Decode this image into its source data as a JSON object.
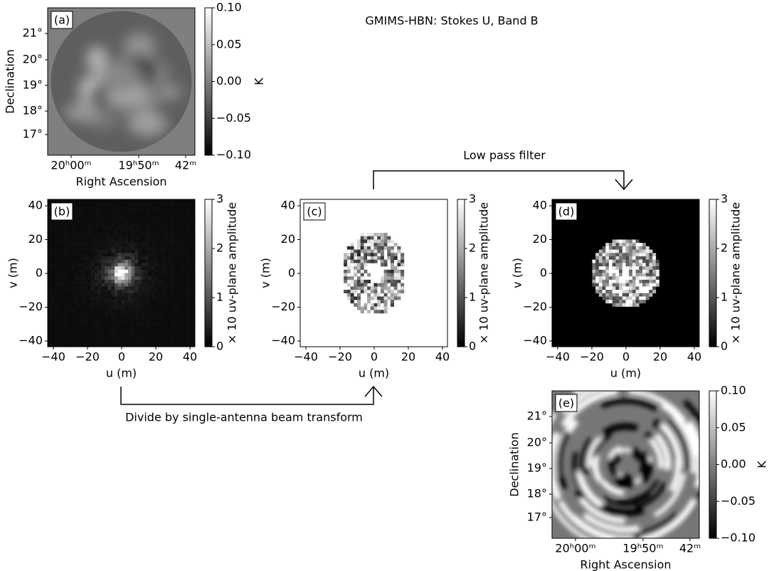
{
  "title": "GMIMS-HBN: Stokes U, Band B",
  "panels": [
    {
      "label": "(a)",
      "xlabel": "Right Ascension",
      "ylabel": "Declination",
      "xticks": [
        "20ʰ00ᵐ",
        "19ʰ50ᵐ",
        "42ᵐ"
      ],
      "yticks": [
        "21°",
        "20°",
        "19°",
        "18°",
        "17°"
      ],
      "colorbar": {
        "ticks": [
          "0.10",
          "0.05",
          "0.00",
          "−0.05",
          "−0.10"
        ],
        "label": "K"
      }
    },
    {
      "label": "(b)",
      "xlabel": "u (m)",
      "ylabel": "v (m)",
      "xticks": [
        "−40",
        "−20",
        "0",
        "20",
        "40"
      ],
      "yticks": [
        "40",
        "20",
        "0",
        "−20",
        "−40"
      ],
      "colorbar": {
        "ticks": [
          "3",
          "2",
          "1",
          "0"
        ],
        "label": "× 10 uv-plane amplitude"
      }
    },
    {
      "label": "(c)",
      "xlabel": "u (m)",
      "ylabel": "v (m)",
      "xticks": [
        "−40",
        "−20",
        "0",
        "20",
        "40"
      ],
      "yticks": [
        "40",
        "20",
        "0",
        "−20",
        "−40"
      ],
      "colorbar": {
        "ticks": [
          "3",
          "2",
          "1",
          "0"
        ],
        "label": "× 10 uv-plane amplitude"
      }
    },
    {
      "label": "(d)",
      "xlabel": "u (m)",
      "ylabel": "v (m)",
      "xticks": [
        "−40",
        "−20",
        "0",
        "20",
        "40"
      ],
      "yticks": [
        "40",
        "20",
        "0",
        "−20",
        "−40"
      ],
      "colorbar": {
        "ticks": [
          "3",
          "2",
          "1",
          "0"
        ],
        "label": "× 10 uv-plane amplitude"
      }
    },
    {
      "label": "(e)",
      "xlabel": "Right Ascension",
      "ylabel": "Declination",
      "xticks": [
        "20ʰ00ᵐ",
        "19ʰ50ᵐ",
        "42ᵐ"
      ],
      "yticks": [
        "21°",
        "20°",
        "19°",
        "18°",
        "17°"
      ],
      "colorbar": {
        "ticks": [
          "0.10",
          "0.05",
          "0.00",
          "−0.05",
          "−0.10"
        ],
        "label": "K"
      }
    }
  ],
  "arrows": [
    {
      "label": "Low pass filter"
    },
    {
      "label": "Divide by single-antenna beam transform"
    }
  ]
}
